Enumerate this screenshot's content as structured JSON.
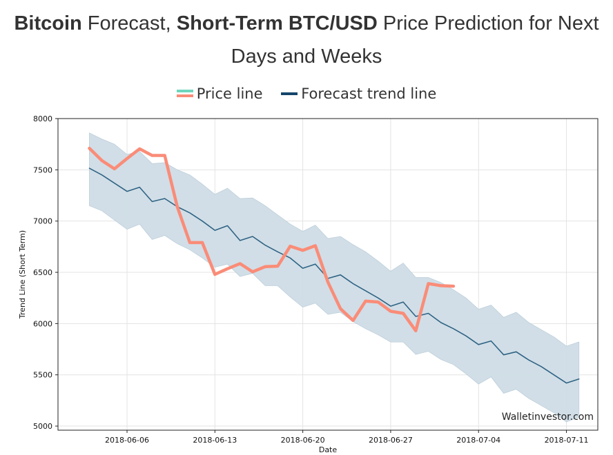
{
  "header": {
    "title_bold_1": "Bitcoin",
    "title_regular_1": " Forecast, ",
    "title_bold_2": "Short-Term BTC/USD",
    "title_regular_2": " Price Prediction for Next Days and Weeks"
  },
  "colors": {
    "price_line": "#fa8c78",
    "price_legend_top": "#6fd6bc",
    "forecast_line": "#2f6384",
    "forecast_legend": "#14456b",
    "band": "#cfdde6",
    "band_edge": "#b9ccd8",
    "grid": "#e3e3e3"
  },
  "chart_data": {
    "type": "line",
    "title": "",
    "xlabel": "Date",
    "ylabel": "Trend Line (Short Term)",
    "ylim": [
      4960,
      8000
    ],
    "xlim_days": [
      -5.5,
      37.5
    ],
    "x_origin_date": "2018-06-06",
    "yticks": [
      5000,
      5500,
      6000,
      6500,
      7000,
      7500,
      8000
    ],
    "xticks": [
      {
        "day": 0,
        "label": "2018-06-06"
      },
      {
        "day": 7,
        "label": "2018-06-13"
      },
      {
        "day": 14,
        "label": "2018-06-20"
      },
      {
        "day": 21,
        "label": "2018-06-27"
      },
      {
        "day": 28,
        "label": "2018-07-04"
      },
      {
        "day": 35,
        "label": "2018-07-11"
      }
    ],
    "legend": [
      "Price line",
      "Forecast trend line"
    ],
    "watermark": "Walletinvestor.com",
    "series": [
      {
        "name": "Price line",
        "x": [
          -3,
          -2,
          -1,
          0,
          1,
          2,
          3,
          4,
          5,
          6,
          7,
          8,
          9,
          10,
          11,
          12,
          13,
          14,
          15,
          16,
          17,
          18,
          19,
          20,
          21,
          22,
          23,
          24,
          25,
          26
        ],
        "values": [
          7710,
          7590,
          7510,
          7610,
          7705,
          7640,
          7640,
          7140,
          6790,
          6790,
          6480,
          6535,
          6585,
          6505,
          6555,
          6560,
          6755,
          6715,
          6760,
          6405,
          6145,
          6030,
          6220,
          6210,
          6120,
          6100,
          5930,
          6390,
          6370,
          6365
        ]
      },
      {
        "name": "Forecast trend line",
        "x": [
          -3,
          -2,
          -1,
          0,
          1,
          2,
          3,
          4,
          5,
          6,
          7,
          8,
          9,
          10,
          11,
          12,
          13,
          14,
          15,
          16,
          17,
          18,
          19,
          20,
          21,
          22,
          23,
          24,
          25,
          26,
          27,
          28,
          29,
          30,
          31,
          32,
          33,
          34,
          35,
          36
        ],
        "values": [
          7515,
          7450,
          7370,
          7290,
          7330,
          7190,
          7220,
          7140,
          7080,
          7000,
          6910,
          6955,
          6810,
          6850,
          6765,
          6700,
          6640,
          6540,
          6580,
          6440,
          6475,
          6390,
          6320,
          6250,
          6170,
          6210,
          6070,
          6100,
          6010,
          5950,
          5880,
          5795,
          5830,
          5695,
          5725,
          5645,
          5580,
          5500,
          5420,
          5460
        ]
      },
      {
        "name": "Forecast upper band",
        "x": [
          -3,
          -2,
          -1,
          0,
          1,
          2,
          3,
          4,
          5,
          6,
          7,
          8,
          9,
          10,
          11,
          12,
          13,
          14,
          15,
          16,
          17,
          18,
          19,
          20,
          21,
          22,
          23,
          24,
          25,
          26,
          27,
          28,
          29,
          30,
          31,
          32,
          33,
          34,
          35,
          36
        ],
        "values": [
          7860,
          7800,
          7750,
          7650,
          7680,
          7560,
          7570,
          7500,
          7450,
          7360,
          7260,
          7320,
          7220,
          7225,
          7150,
          7060,
          6970,
          6900,
          6960,
          6830,
          6850,
          6770,
          6700,
          6610,
          6510,
          6590,
          6450,
          6450,
          6400,
          6330,
          6250,
          6140,
          6180,
          6060,
          6110,
          6010,
          5940,
          5870,
          5780,
          5820
        ]
      },
      {
        "name": "Forecast lower band",
        "x": [
          -3,
          -2,
          -1,
          0,
          1,
          2,
          3,
          4,
          5,
          6,
          7,
          8,
          9,
          10,
          11,
          12,
          13,
          14,
          15,
          16,
          17,
          18,
          19,
          20,
          21,
          22,
          23,
          24,
          25,
          26,
          27,
          28,
          29,
          30,
          31,
          32,
          33,
          34,
          35,
          36
        ],
        "values": [
          7150,
          7100,
          7010,
          6920,
          6970,
          6820,
          6860,
          6780,
          6720,
          6640,
          6550,
          6580,
          6460,
          6490,
          6370,
          6370,
          6260,
          6160,
          6200,
          6090,
          6110,
          6020,
          5950,
          5890,
          5820,
          5820,
          5700,
          5730,
          5650,
          5600,
          5510,
          5410,
          5480,
          5320,
          5360,
          5270,
          5200,
          5130,
          5040,
          5090
        ]
      }
    ]
  }
}
